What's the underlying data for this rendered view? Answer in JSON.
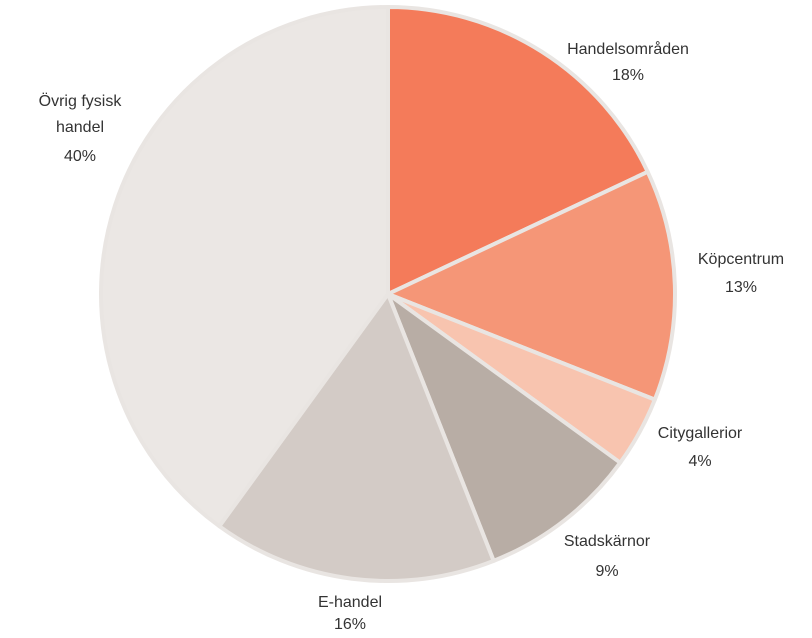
{
  "chart_data": {
    "type": "pie",
    "categories": [
      "Handelsområden",
      "Köpcentrum",
      "Citygallerior",
      "Stadskärnor",
      "E-handel",
      "Övrig fysisk handel"
    ],
    "values": [
      18,
      13,
      4,
      9,
      16,
      40
    ],
    "value_labels": [
      "18%",
      "13%",
      "4%",
      "9%",
      "16%",
      "40%"
    ],
    "colors": [
      "#f47b5a",
      "#f59677",
      "#f8c4af",
      "#b8ada5",
      "#d3cbc6",
      "#ebe7e4"
    ]
  }
}
